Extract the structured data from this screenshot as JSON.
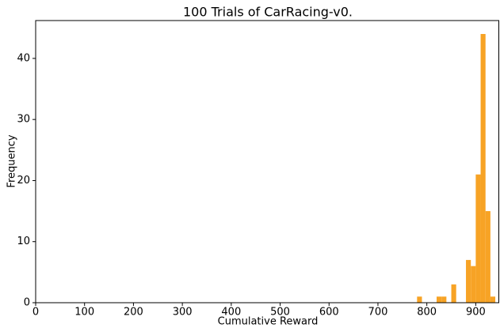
{
  "chart_data": {
    "type": "histogram",
    "title": "100 Trials of CarRacing-v0.",
    "x_label": "Cumulative Reward",
    "y_label": "Frequency",
    "bins": [
      780,
      790,
      800,
      810,
      820,
      830,
      840,
      850,
      860,
      870,
      880,
      890,
      900,
      910,
      920,
      930,
      940
    ],
    "values": [
      1,
      0,
      0,
      0,
      1,
      1,
      0,
      3,
      0,
      0,
      7,
      6,
      21,
      44,
      15,
      1
    ],
    "color": "#f7a325",
    "xlim": [
      0,
      948
    ],
    "ylim": [
      0,
      46.2
    ],
    "xticks": [
      0,
      100,
      200,
      300,
      400,
      500,
      600,
      700,
      800,
      900
    ],
    "yticks": [
      0,
      10,
      20,
      30,
      40
    ]
  }
}
